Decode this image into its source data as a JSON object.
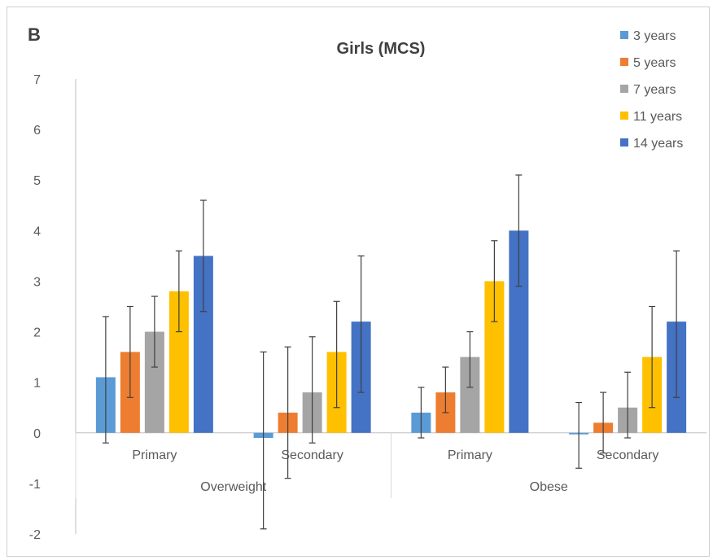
{
  "panel_label": "B",
  "chart_data": {
    "type": "bar",
    "title": "Girls (MCS)",
    "xlabel": "",
    "ylabel": "",
    "ylim": [
      -2,
      7
    ],
    "yticks": [
      -2,
      -1,
      0,
      1,
      2,
      3,
      4,
      5,
      6,
      7
    ],
    "grid": false,
    "legend_position": "top-right",
    "groups": [
      "Overweight",
      "Obese"
    ],
    "categories": [
      "Primary",
      "Secondary",
      "Primary",
      "Secondary"
    ],
    "category_groups": [
      0,
      0,
      1,
      1
    ],
    "series": [
      {
        "name": "3 years",
        "color": "#5B9BD5",
        "values": [
          1.1,
          -0.1,
          0.4,
          -0.03
        ],
        "err_low": [
          -0.2,
          -1.9,
          -0.1,
          -0.7
        ],
        "err_high": [
          2.3,
          1.6,
          0.9,
          0.6
        ]
      },
      {
        "name": "5 years",
        "color": "#ED7D31",
        "values": [
          1.6,
          0.4,
          0.8,
          0.2
        ],
        "err_low": [
          0.7,
          -0.9,
          0.4,
          -0.4
        ],
        "err_high": [
          2.5,
          1.7,
          1.3,
          0.8
        ]
      },
      {
        "name": "7 years",
        "color": "#A5A5A5",
        "values": [
          2.0,
          0.8,
          1.5,
          0.5
        ],
        "err_low": [
          1.3,
          -0.2,
          0.9,
          -0.1
        ],
        "err_high": [
          2.7,
          1.9,
          2.0,
          1.2
        ]
      },
      {
        "name": "11 years",
        "color": "#FFC000",
        "values": [
          2.8,
          1.6,
          3.0,
          1.5
        ],
        "err_low": [
          2.0,
          0.5,
          2.2,
          0.5
        ],
        "err_high": [
          3.6,
          2.6,
          3.8,
          2.5
        ]
      },
      {
        "name": "14 years",
        "color": "#4472C4",
        "values": [
          3.5,
          2.2,
          4.0,
          2.2
        ],
        "err_low": [
          2.4,
          0.8,
          2.9,
          0.7
        ],
        "err_high": [
          4.6,
          3.5,
          5.1,
          3.6
        ]
      }
    ]
  }
}
